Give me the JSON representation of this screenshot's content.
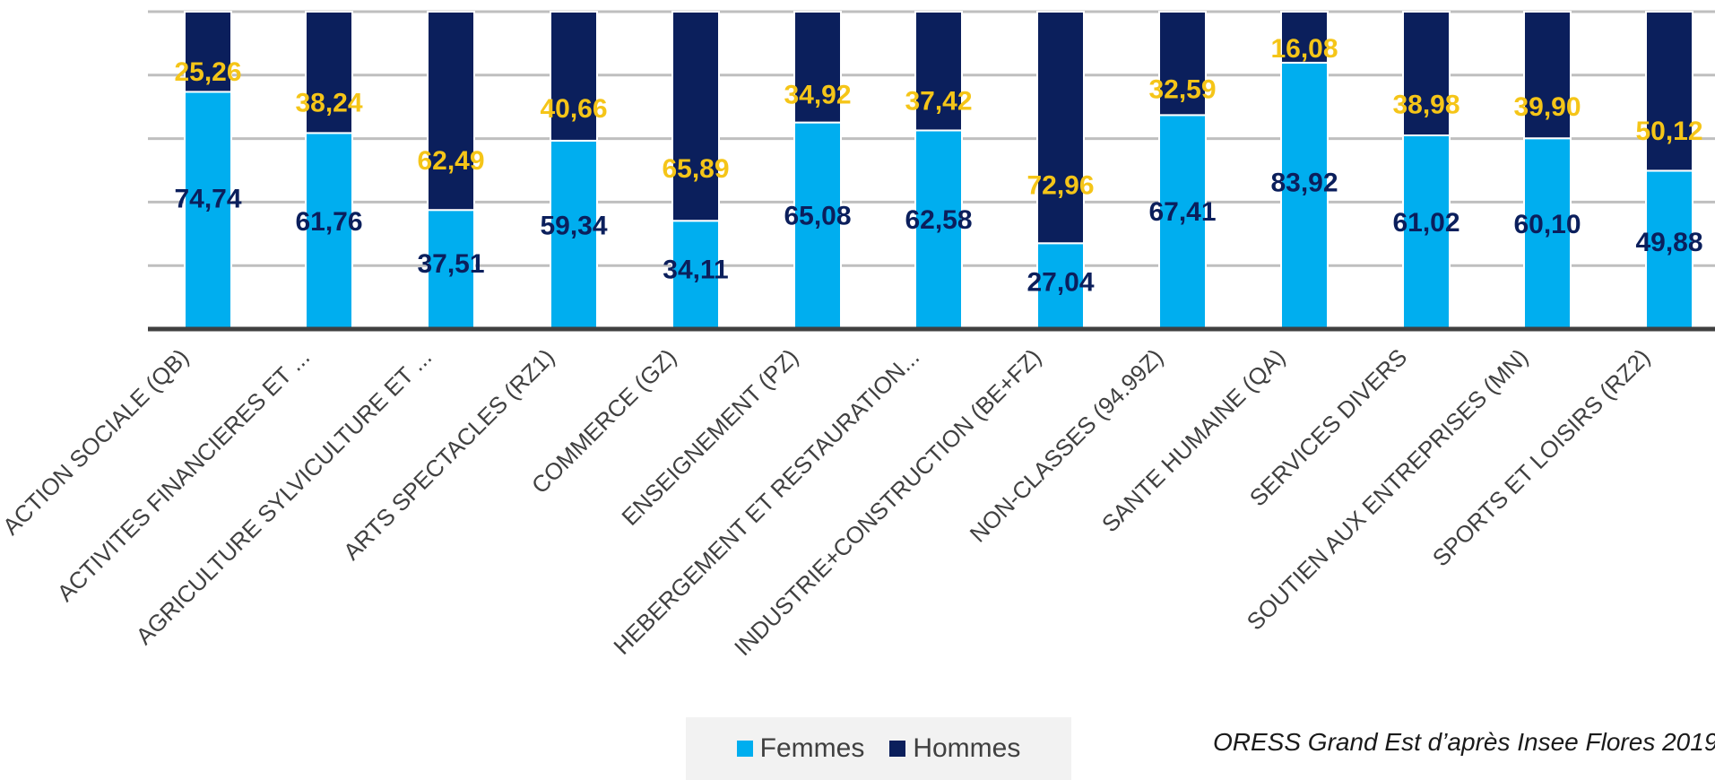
{
  "source": "ORESS Grand Est d’après Insee Flores 2019",
  "legend": {
    "femmes_label": "Femmes",
    "hommes_label": "Hommes"
  },
  "colors": {
    "femmes": "#00AEEF",
    "hommes": "#0B1F5C",
    "femmes_label": "#0B1F5C",
    "hommes_label": "#F5C518"
  },
  "chart_data": {
    "type": "bar",
    "stacked": true,
    "ylim": [
      0,
      100
    ],
    "grid": true,
    "legend_position": "bottom",
    "categories": [
      "ACTION SOCIALE (QB)",
      "ACTIVITES FINANCIERES ET ...",
      "AGRICULTURE SYLVICULTURE ET ...",
      "ARTS SPECTACLES (RZ1)",
      "COMMERCE (GZ)",
      "ENSEIGNEMENT (PZ)",
      "HEBERGEMENT ET RESTAURATION...",
      "INDUSTRIE+CONSTRUCTION (BE+FZ)",
      "NON-CLASSES (94.99Z)",
      "SANTE HUMAINE (QA)",
      "SERVICES DIVERS",
      "SOUTIEN AUX ENTREPRISES (MN)",
      "SPORTS ET LOISIRS (RZ2)"
    ],
    "series": [
      {
        "name": "Femmes",
        "values": [
          74.74,
          61.76,
          37.51,
          59.34,
          34.11,
          65.08,
          62.58,
          27.04,
          67.41,
          83.92,
          61.02,
          60.1,
          49.88
        ]
      },
      {
        "name": "Hommes",
        "values": [
          25.26,
          38.24,
          62.49,
          40.66,
          65.89,
          34.92,
          37.42,
          72.96,
          32.59,
          16.08,
          38.98,
          39.9,
          50.12
        ]
      }
    ],
    "femmes_value_labels": [
      "74,74",
      "61,76",
      "37,51",
      "59,34",
      "34,11",
      "65,08",
      "62,58",
      "27,04",
      "67,41",
      "83,92",
      "61,02",
      "60,10",
      "49,88"
    ],
    "hommes_value_labels": [
      "25,26",
      "38,24",
      "62,49",
      "40,66",
      "65,89",
      "34,92",
      "37,42",
      "72,96",
      "32,59",
      "16,08",
      "38,98",
      "39,90",
      "50,12"
    ]
  }
}
